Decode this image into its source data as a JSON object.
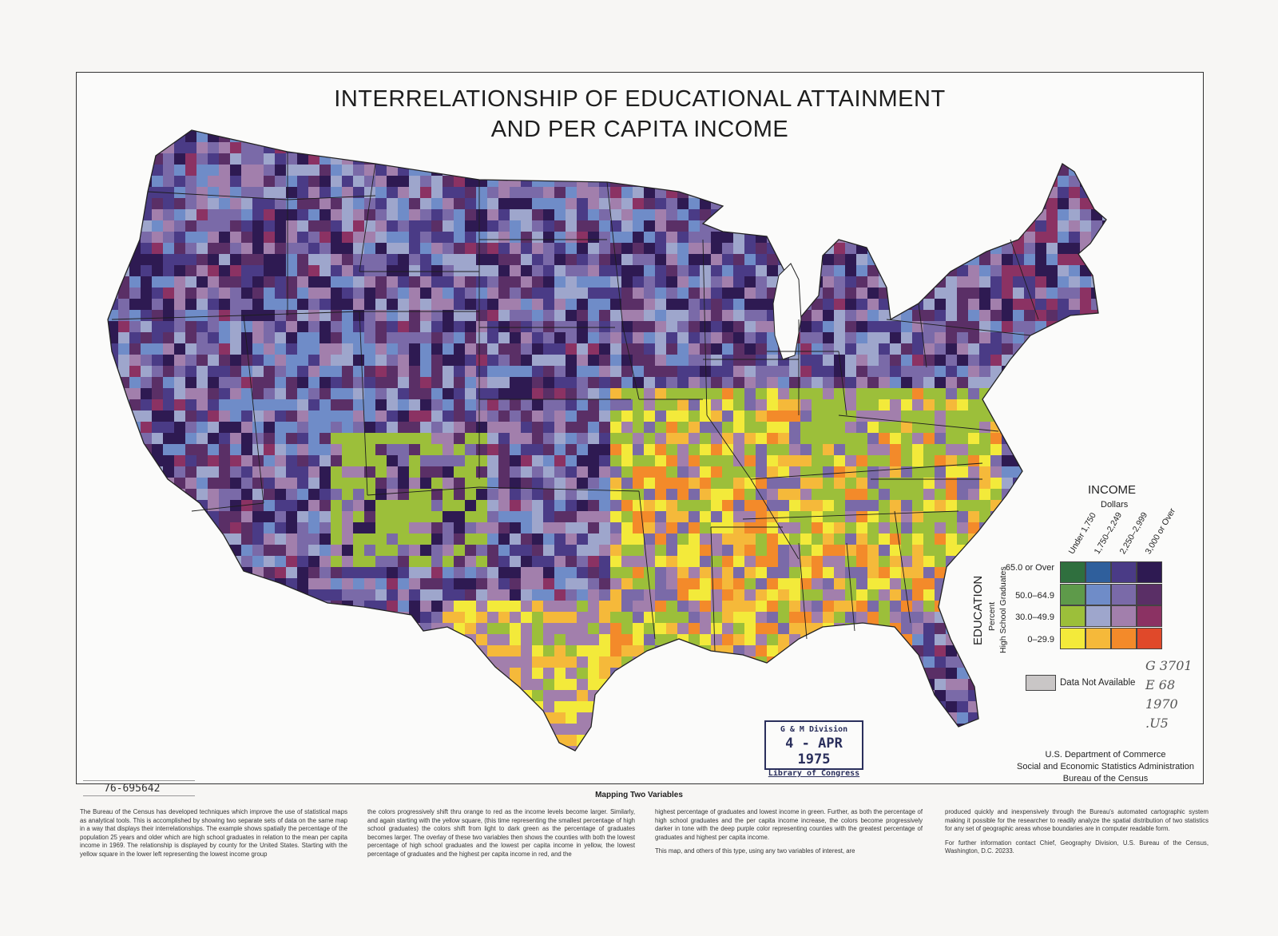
{
  "title": {
    "line1": "INTERRELATIONSHIP OF EDUCATIONAL ATTAINMENT",
    "line2": "AND PER CAPITA INCOME"
  },
  "legend": {
    "income_title": "INCOME",
    "income_unit": "Dollars",
    "income_classes": [
      "Under 1,750",
      "1,750–2,249",
      "2,250–2,999",
      "3,000 or Over"
    ],
    "education_title": "EDUCATION",
    "education_unit": "Percent",
    "education_subtitle": "High School Graduates",
    "education_classes": [
      "65.0 or Over",
      "50.0–64.9",
      "30.0–49.9",
      "0–29.9"
    ],
    "colors": [
      [
        "#2f6f3e",
        "#2f5f9c",
        "#4a3b86",
        "#2e1a52"
      ],
      [
        "#5e9a4a",
        "#6f8cc8",
        "#7a6aa8",
        "#5a2f66"
      ],
      [
        "#9cbf3a",
        "#9ea6cc",
        "#a27fac",
        "#8b3263"
      ],
      [
        "#f3ea3a",
        "#f5b93a",
        "#f38a2a",
        "#e0492a"
      ]
    ],
    "na_color": "#c9c6c6",
    "na_label": "Data Not Available"
  },
  "agency": {
    "line1": "U.S. Department of Commerce",
    "line2": "Social and Economic Statistics Administration",
    "line3": "Bureau of the Census"
  },
  "stamp": {
    "line1": "G & M Division",
    "line2": "4 - APR 1975",
    "line3": "Library of Congress"
  },
  "handwritten": {
    "line1": "G 3701",
    "line2": "E 68",
    "line3": "1970",
    "line4": ".U5"
  },
  "accession": "76-695642",
  "caption": {
    "heading": "Mapping Two Variables",
    "col1": "The Bureau of the Census has developed techniques which improve the use of statistical maps as analytical tools. This is accomplished by showing two separate sets of data on the same map in a way that displays their interrelationships. The example shows spatially the percentage of the population 25 years and older which are high school graduates in relation to the mean per capita income in 1969. The relationship is displayed by county for the United States. Starting with the yellow square in the lower left representing the lowest income group",
    "col2": "the colors progressively shift thru orange to red as the income levels become larger. Similarly, and again starting with the yellow square, (this time representing the smallest percentage of high school graduates) the colors shift from light to dark green as the percentage of graduates becomes larger. The overlay of these two variables then shows the counties with both the lowest percentage of high school graduates and the lowest per capita income in yellow, the lowest percentage of graduates and the highest per capita income in red, and the",
    "col3a": "highest percentage of graduates and lowest income in green. Further, as both the percentage of high school graduates and the per capita income increase, the colors become progressively darker in tone with the deep purple color representing counties with the greatest percentage of graduates and highest per capita income.",
    "col3b": "This map, and others of this type, using any two variables of interest, are",
    "col4a": "produced quickly and inexpensively through the Bureau's automated cartographic system making it possible for the researcher to readily analyze the spatial distribution of two statistics for any set of geographic areas whose boundaries are in computer readable form.",
    "col4b": "For further information contact Chief, Geography Division, U.S. Bureau of the Census, Washington, D.C. 20233."
  }
}
